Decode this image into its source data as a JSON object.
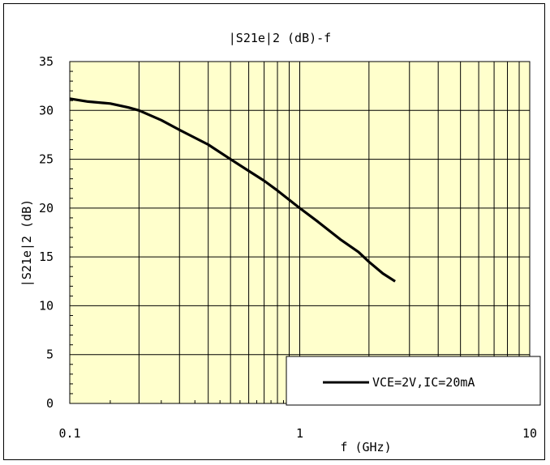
{
  "chart_data": {
    "type": "line",
    "title": "|S21e|2 (dB)-f",
    "xlabel": "f (GHz)",
    "ylabel": "|S21e|2 (dB)",
    "x_scale": "log",
    "xlim": [
      0.1,
      10
    ],
    "ylim": [
      0,
      35
    ],
    "x_tick_labels": [
      "0.1",
      "1",
      "10"
    ],
    "y_tick_labels": [
      "0",
      "5",
      "10",
      "15",
      "20",
      "25",
      "30",
      "35"
    ],
    "grid": true,
    "legend_position": "bottom-right",
    "plot_background": "#FFFFCC",
    "line_color": "#000000",
    "series": [
      {
        "name": "VCE=2V,IC=20mA",
        "x": [
          0.1,
          0.12,
          0.15,
          0.18,
          0.2,
          0.25,
          0.3,
          0.4,
          0.5,
          0.6,
          0.7,
          0.8,
          1.0,
          1.2,
          1.5,
          1.8,
          2.0,
          2.3,
          2.6
        ],
        "y": [
          31.2,
          30.9,
          30.7,
          30.3,
          30.0,
          29.0,
          28.0,
          26.5,
          25.0,
          23.8,
          22.8,
          21.8,
          20.0,
          18.6,
          16.8,
          15.5,
          14.5,
          13.3,
          12.5
        ]
      }
    ]
  }
}
